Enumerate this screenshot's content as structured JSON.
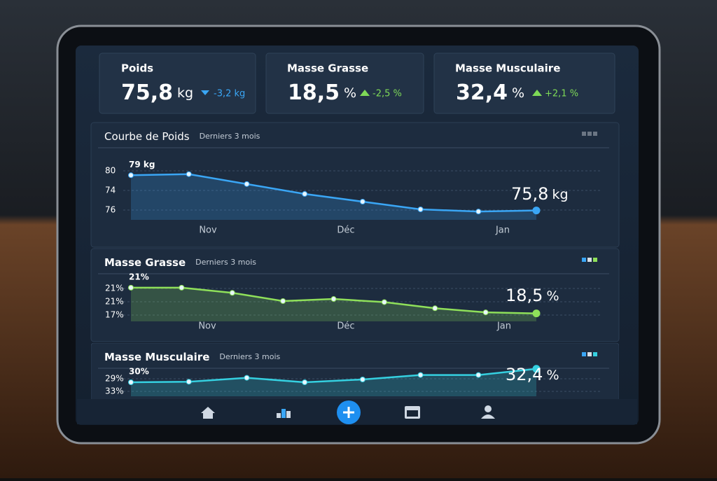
{
  "cards": [
    {
      "title": "Poids",
      "value": "75,8",
      "unit": "kg",
      "delta": "-3,2 kg",
      "trend": "down",
      "delta_color": "#3aa6f5"
    },
    {
      "title": "Masse Grasse",
      "value": "18,5",
      "unit": "%",
      "delta": "-2,5 %",
      "trend": "up",
      "delta_color": "#7ed957"
    },
    {
      "title": "Masse Musculaire",
      "value": "32,4",
      "unit": "%",
      "delta": "+2,1 %",
      "trend": "up",
      "delta_color": "#7ed957"
    }
  ],
  "charts": [
    {
      "type": "line",
      "title": "Courbe de Poids",
      "subtitle": "Derniers 3 mois",
      "y_labels": [
        "80",
        "74",
        "76"
      ],
      "x_labels": [
        "Nov",
        "Déc",
        "Jan"
      ],
      "values": [
        79,
        79.1,
        78.2,
        77.3,
        76.6,
        75.9,
        75.7,
        75.8
      ],
      "ylim": [
        75.2,
        79.4
      ],
      "color": "#3aa6f5",
      "start_label": "79 kg",
      "end_value": "75,8",
      "end_unit": "kg"
    },
    {
      "type": "line",
      "title": "Masse Grasse",
      "subtitle": "Derniers 3 mois",
      "y_labels": [
        "21%",
        "21%",
        "17%"
      ],
      "x_labels": [
        "Nov",
        "Déc",
        "Jan"
      ],
      "values": [
        21,
        21,
        20.5,
        19.7,
        19.9,
        19.6,
        19,
        18.6,
        18.5
      ],
      "ylim": [
        18,
        21.4
      ],
      "color": "#8fe05a",
      "start_label": "21%",
      "end_value": "18,5",
      "end_unit": "%"
    },
    {
      "type": "line",
      "title": "Masse Musculaire",
      "subtitle": "Derniers 3 mois",
      "y_labels": [
        "29%",
        "33%"
      ],
      "x_labels": [],
      "values": [
        30,
        30.1,
        30.8,
        30,
        30.5,
        31.3,
        31.3,
        32.4
      ],
      "ylim": [
        28,
        33
      ],
      "color": "#35d0e0",
      "start_label": "30%",
      "end_value": "32,4",
      "end_unit": "%"
    }
  ]
}
